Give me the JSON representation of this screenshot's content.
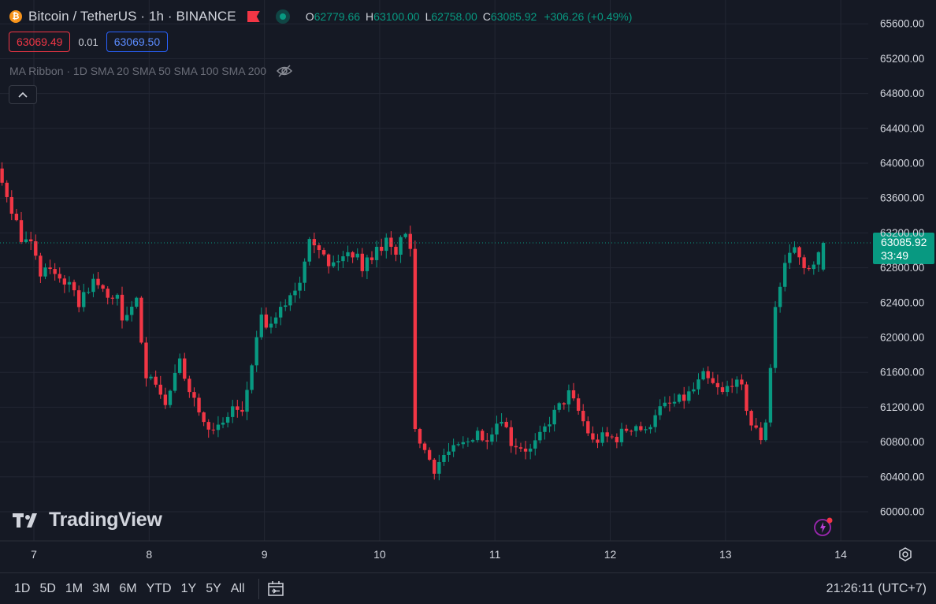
{
  "header": {
    "coin_icon_glyph": "₿",
    "title": "Bitcoin / TetherUS · 1h · BINANCE",
    "ohlc": {
      "o_label": "O",
      "o": "62779.66",
      "h_label": "H",
      "h": "63100.00",
      "l_label": "L",
      "l": "62758.00",
      "c_label": "C",
      "c": "63085.92",
      "change": "+306.26 (+0.49%)"
    }
  },
  "trade": {
    "sell": "63069.49",
    "spread": "0.01",
    "buy": "63069.50"
  },
  "indicator": {
    "label": "MA Ribbon · 1D SMA 20 SMA 50 SMA 100 SMA 200"
  },
  "logo": {
    "text": "TradingView"
  },
  "bottom": {
    "ranges": [
      "1D",
      "5D",
      "1M",
      "3M",
      "6M",
      "YTD",
      "1Y",
      "5Y",
      "All"
    ],
    "clock": "21:26:11 (UTC+7)"
  },
  "colors": {
    "up": "#089981",
    "down": "#f23645",
    "background": "#151924",
    "grid": "#232733"
  },
  "icons": [
    "bitcoin-icon",
    "flag-icon",
    "status-dot-icon",
    "eye-off-icon",
    "chevron-up-icon",
    "tradingview-logo-icon",
    "date-range-icon",
    "settings-icon",
    "lightning-icon"
  ],
  "chart_data": {
    "type": "candlestick",
    "symbol": "BTCUSDT",
    "interval": "1h",
    "ylim": [
      59850,
      65700
    ],
    "y_ticks": [
      "65600.00",
      "65200.00",
      "64800.00",
      "64400.00",
      "64000.00",
      "63600.00",
      "63200.00",
      "62800.00",
      "62400.00",
      "62000.00",
      "61600.00",
      "61200.00",
      "60800.00",
      "60400.00",
      "60000.00"
    ],
    "x_ticks": [
      "7",
      "8",
      "9",
      "10",
      "11",
      "12",
      "13",
      "14"
    ],
    "last_price": "63085.92",
    "countdown": "33:49",
    "waypoints": [
      [
        0,
        63950
      ],
      [
        3,
        63850
      ],
      [
        6,
        63650
      ],
      [
        8,
        63400
      ],
      [
        10,
        63100
      ],
      [
        12,
        63050
      ],
      [
        14,
        63250
      ],
      [
        16,
        63350
      ],
      [
        18,
        63300
      ],
      [
        20,
        63600
      ],
      [
        24,
        63500
      ],
      [
        27,
        63700
      ],
      [
        31,
        64050
      ],
      [
        33,
        63700
      ],
      [
        35,
        63400
      ],
      [
        37,
        63150
      ],
      [
        40,
        64000
      ],
      [
        43,
        63650
      ],
      [
        46,
        63150
      ],
      [
        48,
        63050
      ],
      [
        50,
        62700
      ],
      [
        52,
        62800
      ],
      [
        55,
        62650
      ],
      [
        58,
        62400
      ],
      [
        61,
        62650
      ],
      [
        62,
        62600
      ],
      [
        64,
        62450
      ],
      [
        66,
        62500
      ],
      [
        67,
        62150
      ],
      [
        70,
        62400
      ],
      [
        72,
        61600
      ],
      [
        74,
        61500
      ],
      [
        76,
        61200
      ],
      [
        77,
        61400
      ],
      [
        79,
        61700
      ],
      [
        82,
        61300
      ],
      [
        84,
        61100
      ],
      [
        86,
        60900
      ],
      [
        88,
        61000
      ],
      [
        90,
        61200
      ],
      [
        92,
        61100
      ],
      [
        94,
        61700
      ],
      [
        96,
        62200
      ],
      [
        98,
        62100
      ],
      [
        100,
        62300
      ],
      [
        102,
        62500
      ],
      [
        104,
        62650
      ],
      [
        106,
        63200
      ],
      [
        108,
        63050
      ],
      [
        110,
        62800
      ],
      [
        112,
        62900
      ],
      [
        114,
        62950
      ],
      [
        116,
        63000
      ],
      [
        117,
        62800
      ],
      [
        119,
        62950
      ],
      [
        122,
        63100
      ],
      [
        124,
        62900
      ],
      [
        125,
        63200
      ],
      [
        127,
        63050
      ],
      [
        128,
        60950
      ],
      [
        130,
        60700
      ],
      [
        132,
        60500
      ],
      [
        134,
        60650
      ],
      [
        136,
        60700
      ],
      [
        139,
        60800
      ],
      [
        141,
        60950
      ],
      [
        142,
        60800
      ],
      [
        146,
        61100
      ],
      [
        148,
        60800
      ],
      [
        150,
        60750
      ],
      [
        152,
        60700
      ],
      [
        154,
        60850
      ],
      [
        156,
        61050
      ],
      [
        158,
        61200
      ],
      [
        160,
        61350
      ],
      [
        162,
        61150
      ],
      [
        165,
        60800
      ],
      [
        167,
        60850
      ],
      [
        170,
        60850
      ],
      [
        172,
        60950
      ],
      [
        174,
        61000
      ],
      [
        176,
        60900
      ],
      [
        178,
        61150
      ],
      [
        180,
        61200
      ],
      [
        182,
        61250
      ],
      [
        184,
        61300
      ],
      [
        186,
        61400
      ],
      [
        188,
        61550
      ],
      [
        190,
        61450
      ],
      [
        192,
        61350
      ],
      [
        194,
        61500
      ],
      [
        196,
        61400
      ],
      [
        198,
        61000
      ],
      [
        200,
        60850
      ],
      [
        201,
        61050
      ],
      [
        202,
        61650
      ],
      [
        203,
        62350
      ],
      [
        205,
        62800
      ],
      [
        207,
        63050
      ],
      [
        209,
        62850
      ],
      [
        211,
        62800
      ],
      [
        213,
        63085.92
      ]
    ],
    "sharp_moves": [
      [
        127,
        128
      ],
      [
        201,
        202
      ],
      [
        202,
        203
      ],
      [
        72,
        73
      ],
      [
        49,
        50
      ]
    ]
  }
}
